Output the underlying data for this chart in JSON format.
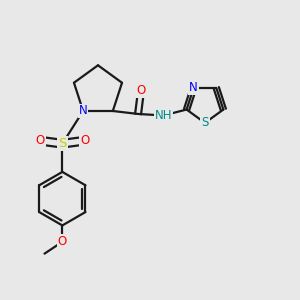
{
  "bg_color": "#e8e8e8",
  "bond_color": "#1a1a1a",
  "N_color": "#0000ff",
  "O_color": "#ff0000",
  "S_sulfonyl_color": "#cccc00",
  "S_thiazol_color": "#008b8b",
  "NH_color": "#008b8b",
  "font_size": 8.5,
  "bond_width": 1.6,
  "xlim": [
    0,
    10
  ],
  "ylim": [
    0,
    10
  ]
}
